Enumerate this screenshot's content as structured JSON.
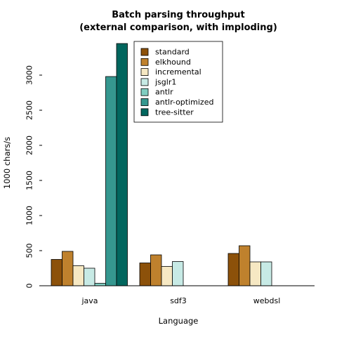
{
  "chart_data": {
    "type": "bar",
    "title_line1": "Batch parsing throughput",
    "title_line2": "(external comparison, with imploding)",
    "xlabel": "Language",
    "ylabel": "1000 chars/s",
    "categories": [
      "java",
      "sdf3",
      "webdsl"
    ],
    "ylim": [
      0,
      3450
    ],
    "yticks": [
      0,
      500,
      1000,
      1500,
      2000,
      2500,
      3000
    ],
    "grid": false,
    "legend_position": "top-center",
    "series": [
      {
        "name": "standard",
        "color": "#8c510a",
        "values": [
          375,
          325,
          460
        ]
      },
      {
        "name": "elkhound",
        "color": "#bf812d",
        "values": [
          490,
          440,
          570
        ]
      },
      {
        "name": "incremental",
        "color": "#f6e8c3",
        "values": [
          285,
          275,
          340
        ]
      },
      {
        "name": "jsglr1",
        "color": "#c7eae5",
        "values": [
          250,
          345,
          340
        ]
      },
      {
        "name": "antlr",
        "color": "#80cdc1",
        "values": [
          35,
          null,
          null
        ]
      },
      {
        "name": "antlr-optimized",
        "color": "#35978f",
        "values": [
          2980,
          null,
          null
        ]
      },
      {
        "name": "tree-sitter",
        "color": "#01665e",
        "values": [
          3450,
          null,
          null
        ]
      }
    ]
  }
}
